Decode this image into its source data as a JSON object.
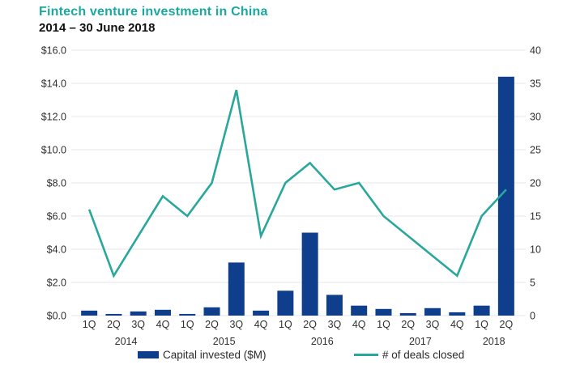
{
  "header": {
    "title": "Fintech venture investment in China",
    "subtitle": "2014 – 30 June 2018"
  },
  "colors": {
    "title": "#1ba8a0",
    "bar": "#0f3e8c",
    "line": "#2aa79b",
    "grid": "#e7e7e7",
    "axis_text": "#2f2f2f"
  },
  "chart_data": {
    "type": "bar",
    "categories": [
      "1Q",
      "2Q",
      "3Q",
      "4Q",
      "1Q",
      "2Q",
      "3Q",
      "4Q",
      "1Q",
      "2Q",
      "3Q",
      "4Q",
      "1Q",
      "2Q",
      "3Q",
      "4Q",
      "1Q",
      "2Q"
    ],
    "year_groups": [
      {
        "label": "2014",
        "span": 4
      },
      {
        "label": "2015",
        "span": 4
      },
      {
        "label": "2016",
        "span": 4
      },
      {
        "label": "2017",
        "span": 4
      },
      {
        "label": "2018",
        "span": 2
      }
    ],
    "series": [
      {
        "name": "Capital invested ($M)",
        "type": "bar",
        "axis": "left",
        "values": [
          0.3,
          0.1,
          0.25,
          0.35,
          0.1,
          0.5,
          3.2,
          0.3,
          1.5,
          5.0,
          1.25,
          0.6,
          0.4,
          0.15,
          0.45,
          0.2,
          0.6,
          14.4
        ]
      },
      {
        "name": "# of deals closed",
        "type": "line",
        "axis": "right",
        "values": [
          16,
          6,
          12,
          18,
          15,
          20,
          34,
          12,
          20,
          23,
          19,
          20,
          15,
          12,
          9,
          6,
          15,
          19
        ]
      }
    ],
    "left_axis": {
      "min": 0,
      "max": 16,
      "ticks": [
        "$16.0",
        "$14.0",
        "$12.0",
        "$10.0",
        "$8.0",
        "$6.0",
        "$4.0",
        "$2.0",
        "$0.0"
      ]
    },
    "right_axis": {
      "min": 0,
      "max": 40,
      "ticks": [
        "40",
        "35",
        "30",
        "25",
        "20",
        "15",
        "10",
        "5",
        "0"
      ]
    },
    "legend": [
      {
        "label": "Capital invested ($M)",
        "marker": "bar"
      },
      {
        "label": "# of deals closed",
        "marker": "line"
      }
    ],
    "grid": "horizontal"
  }
}
